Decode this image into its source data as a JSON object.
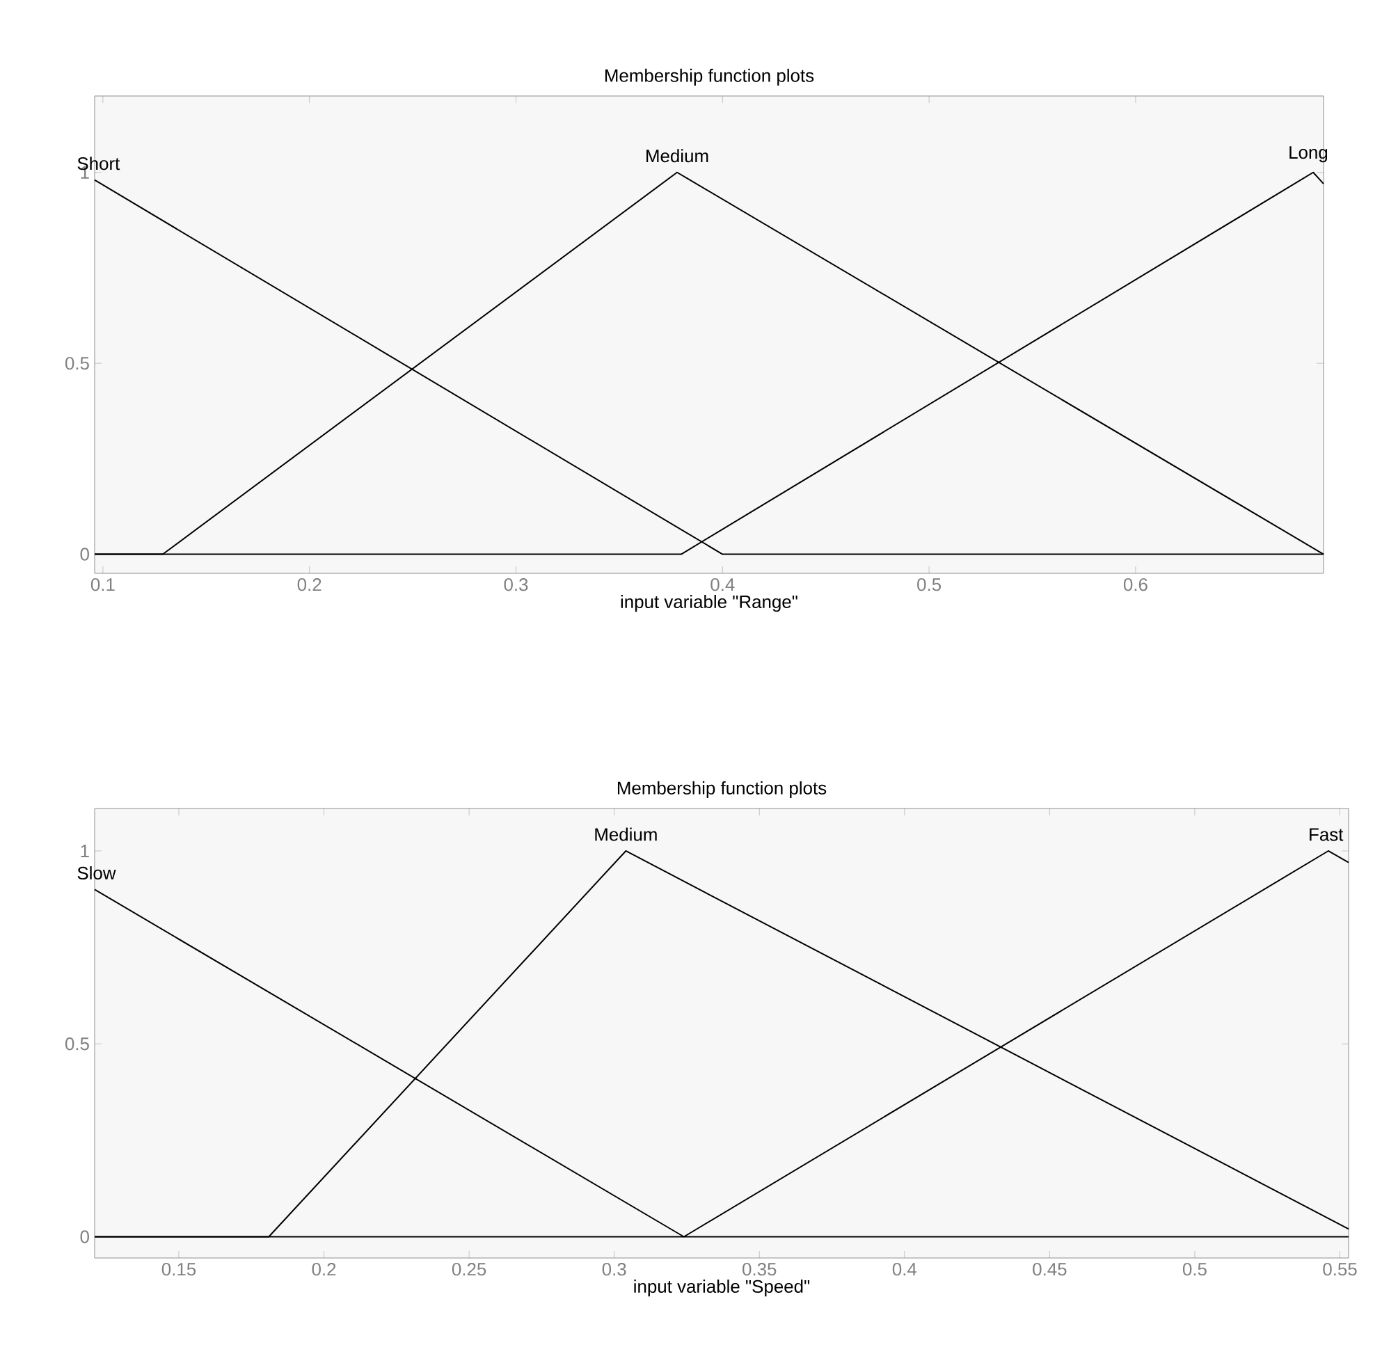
{
  "chart_data": [
    {
      "type": "line",
      "title": "Membership function plots",
      "xlabel": "input variable \"Range\"",
      "xlim": [
        0.096,
        0.691
      ],
      "ylim": [
        -0.05,
        1.2
      ],
      "xticks": [
        0.1,
        0.2,
        0.3,
        0.4,
        0.5,
        0.6
      ],
      "yticks": [
        0,
        0.5,
        1
      ],
      "grid": false,
      "marker": "none",
      "line_style": "solid",
      "series": [
        {
          "name": "Short",
          "color": "#000000",
          "x": [
            0.096,
            0.4,
            0.691
          ],
          "values": [
            0.98,
            0,
            0
          ]
        },
        {
          "name": "Medium",
          "color": "#000000",
          "x": [
            0.096,
            0.129,
            0.378,
            0.691
          ],
          "values": [
            0,
            0,
            1,
            0
          ]
        },
        {
          "name": "Long",
          "color": "#000000",
          "x": [
            0.096,
            0.38,
            0.686,
            0.691
          ],
          "values": [
            0,
            0,
            1,
            0.97
          ]
        }
      ]
    },
    {
      "type": "line",
      "title": "Membership function plots",
      "xlabel": "input variable \"Speed\"",
      "xlim": [
        0.121,
        0.553
      ],
      "ylim": [
        -0.055,
        1.11
      ],
      "xticks": [
        0.15,
        0.2,
        0.25,
        0.3,
        0.35,
        0.4,
        0.45,
        0.5,
        0.55
      ],
      "yticks": [
        0,
        0.5,
        1
      ],
      "grid": false,
      "marker": "none",
      "line_style": "solid",
      "series": [
        {
          "name": "Slow",
          "color": "#000000",
          "x": [
            0.121,
            0.324,
            0.553
          ],
          "values": [
            0.9,
            0,
            0
          ]
        },
        {
          "name": "Medium",
          "color": "#000000",
          "x": [
            0.121,
            0.181,
            0.304,
            0.553
          ],
          "values": [
            0,
            0,
            1,
            0.02
          ]
        },
        {
          "name": "Fast",
          "color": "#000000",
          "x": [
            0.121,
            0.324,
            0.546,
            0.553
          ],
          "values": [
            0,
            0,
            1,
            0.97
          ]
        }
      ]
    }
  ]
}
